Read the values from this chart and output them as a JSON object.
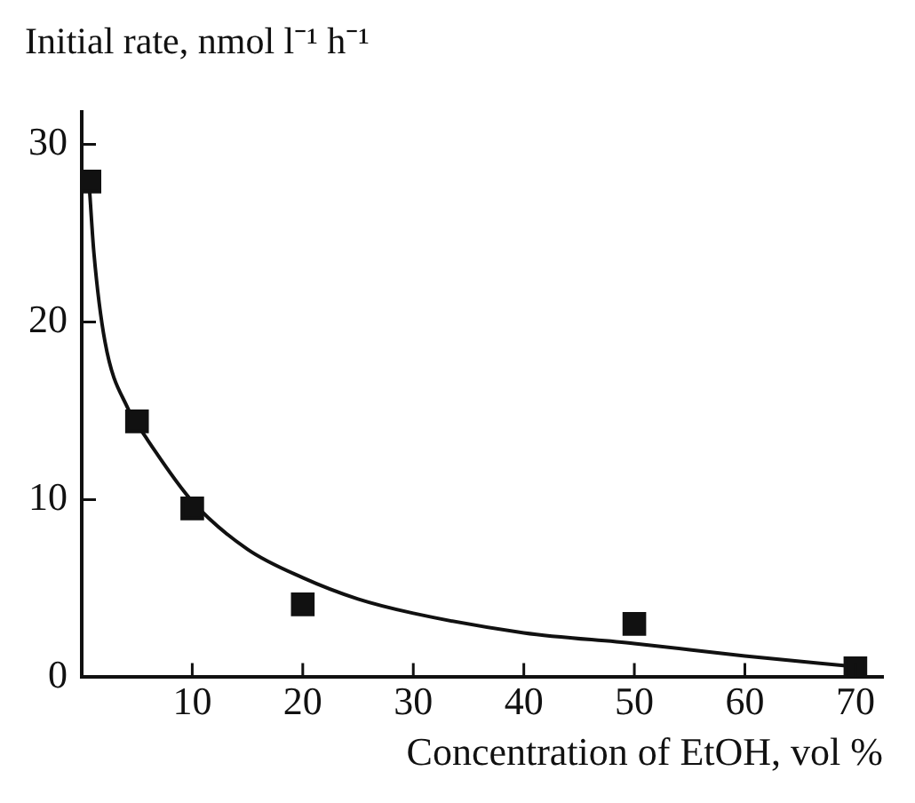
{
  "chart_data": {
    "type": "scatter",
    "ylabel": "Initial rate, nmol l⁻¹ h⁻¹",
    "xlabel": "Concentration of EtOH, vol %",
    "xlim": [
      0,
      72.5
    ],
    "xticks": [
      10,
      20,
      30,
      40,
      50,
      60,
      70
    ],
    "ylim": [
      0,
      31.8
    ],
    "yticks": [
      0,
      10,
      20,
      30
    ],
    "grid": false,
    "legend": false,
    "series": [
      {
        "color": "#111111",
        "marker": "square",
        "x": [
          0.7,
          5,
          10,
          20,
          50,
          70
        ],
        "values": [
          27.9,
          14.4,
          9.5,
          4.1,
          3.0,
          0.5
        ]
      },
      {
        "type": "line",
        "color": "#111111",
        "marker": "none",
        "line_style": "solid",
        "x": [
          0.7,
          1.1,
          2.1,
          4.2,
          5.7,
          10,
          15,
          20,
          25,
          30,
          40,
          50,
          60,
          70
        ],
        "values": [
          27.5,
          23.9,
          18.9,
          15.1,
          13.6,
          9.9,
          7.2,
          5.6,
          4.4,
          3.6,
          2.5,
          1.9,
          1.2,
          0.6
        ]
      }
    ]
  }
}
